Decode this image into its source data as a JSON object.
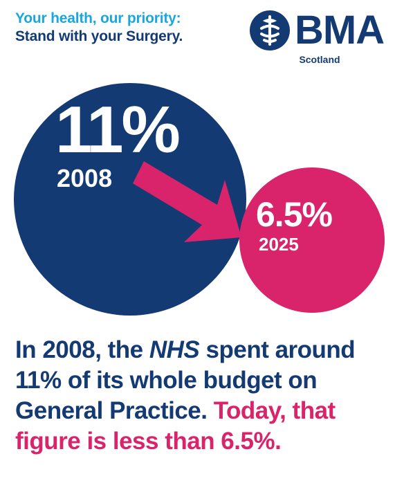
{
  "tagline": {
    "line1": "Your health, our priority:",
    "line2": "Stand with your Surgery."
  },
  "logo": {
    "text": "BMA",
    "subtext": "Scotland"
  },
  "figures": {
    "past": {
      "value": "11%",
      "year": "2008"
    },
    "present": {
      "value": "6.5%",
      "year": "2025"
    }
  },
  "statement": {
    "part1": "In 2008, the ",
    "emphasis": "NHS",
    "part2": " spent around 11% of its whole budget on General Practice.",
    "highlight": "Today, that figure is less than 6.5%."
  },
  "colors": {
    "navy": "#143a73",
    "pink": "#d9246b",
    "cyan": "#1aa7df"
  }
}
